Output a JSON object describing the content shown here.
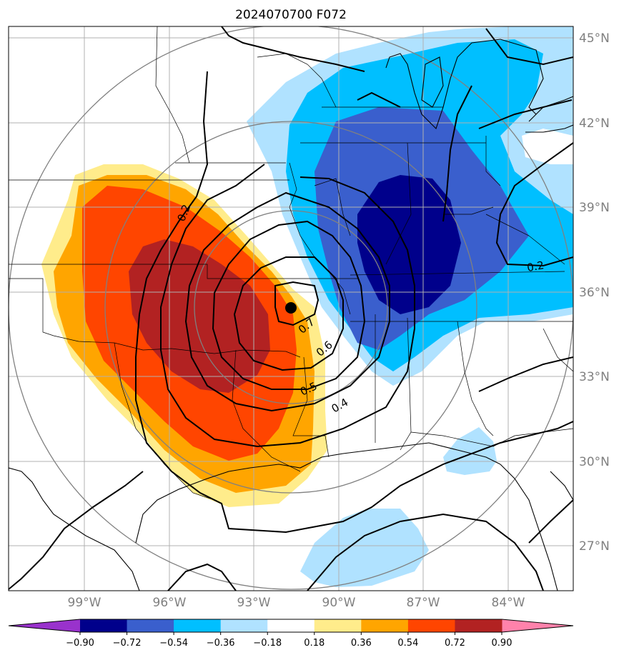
{
  "title": "2024070700 F072",
  "lat_labels": [
    "45°N",
    "42°N",
    "39°N",
    "36°N",
    "33°N",
    "30°N",
    "27°N"
  ],
  "lon_labels": [
    "99°W",
    "96°W",
    "93°W",
    "90°W",
    "87°W",
    "84°W"
  ],
  "contour_labels": [
    "0.2",
    "0.7",
    "0.6",
    "0.5",
    "0.4",
    "0.2"
  ],
  "colorbar": {
    "ticks": [
      "−0.90",
      "−0.72",
      "−0.54",
      "−0.36",
      "−0.18",
      "0.18",
      "0.36",
      "0.54",
      "0.72",
      "0.90"
    ],
    "colors": [
      "#9932cc",
      "#00008b",
      "#3a5fcd",
      "#00bfff",
      "#b0e2ff",
      "#ffffff",
      "#ffec8b",
      "#ffa500",
      "#ff4500",
      "#b22222",
      "#ff82ab"
    ]
  },
  "colors": {
    "strong_neg": "#00008b",
    "mod_neg": "#3a5fcd",
    "weak_neg": "#00bfff",
    "faint_neg": "#b0e2ff",
    "faint_pos": "#ffec8b",
    "weak_pos": "#ffa500",
    "mod_pos": "#ff4500",
    "strong_pos": "#b22222",
    "grid": "#b0b0b0",
    "range_rings": "#808080"
  },
  "marker": "point-marker"
}
